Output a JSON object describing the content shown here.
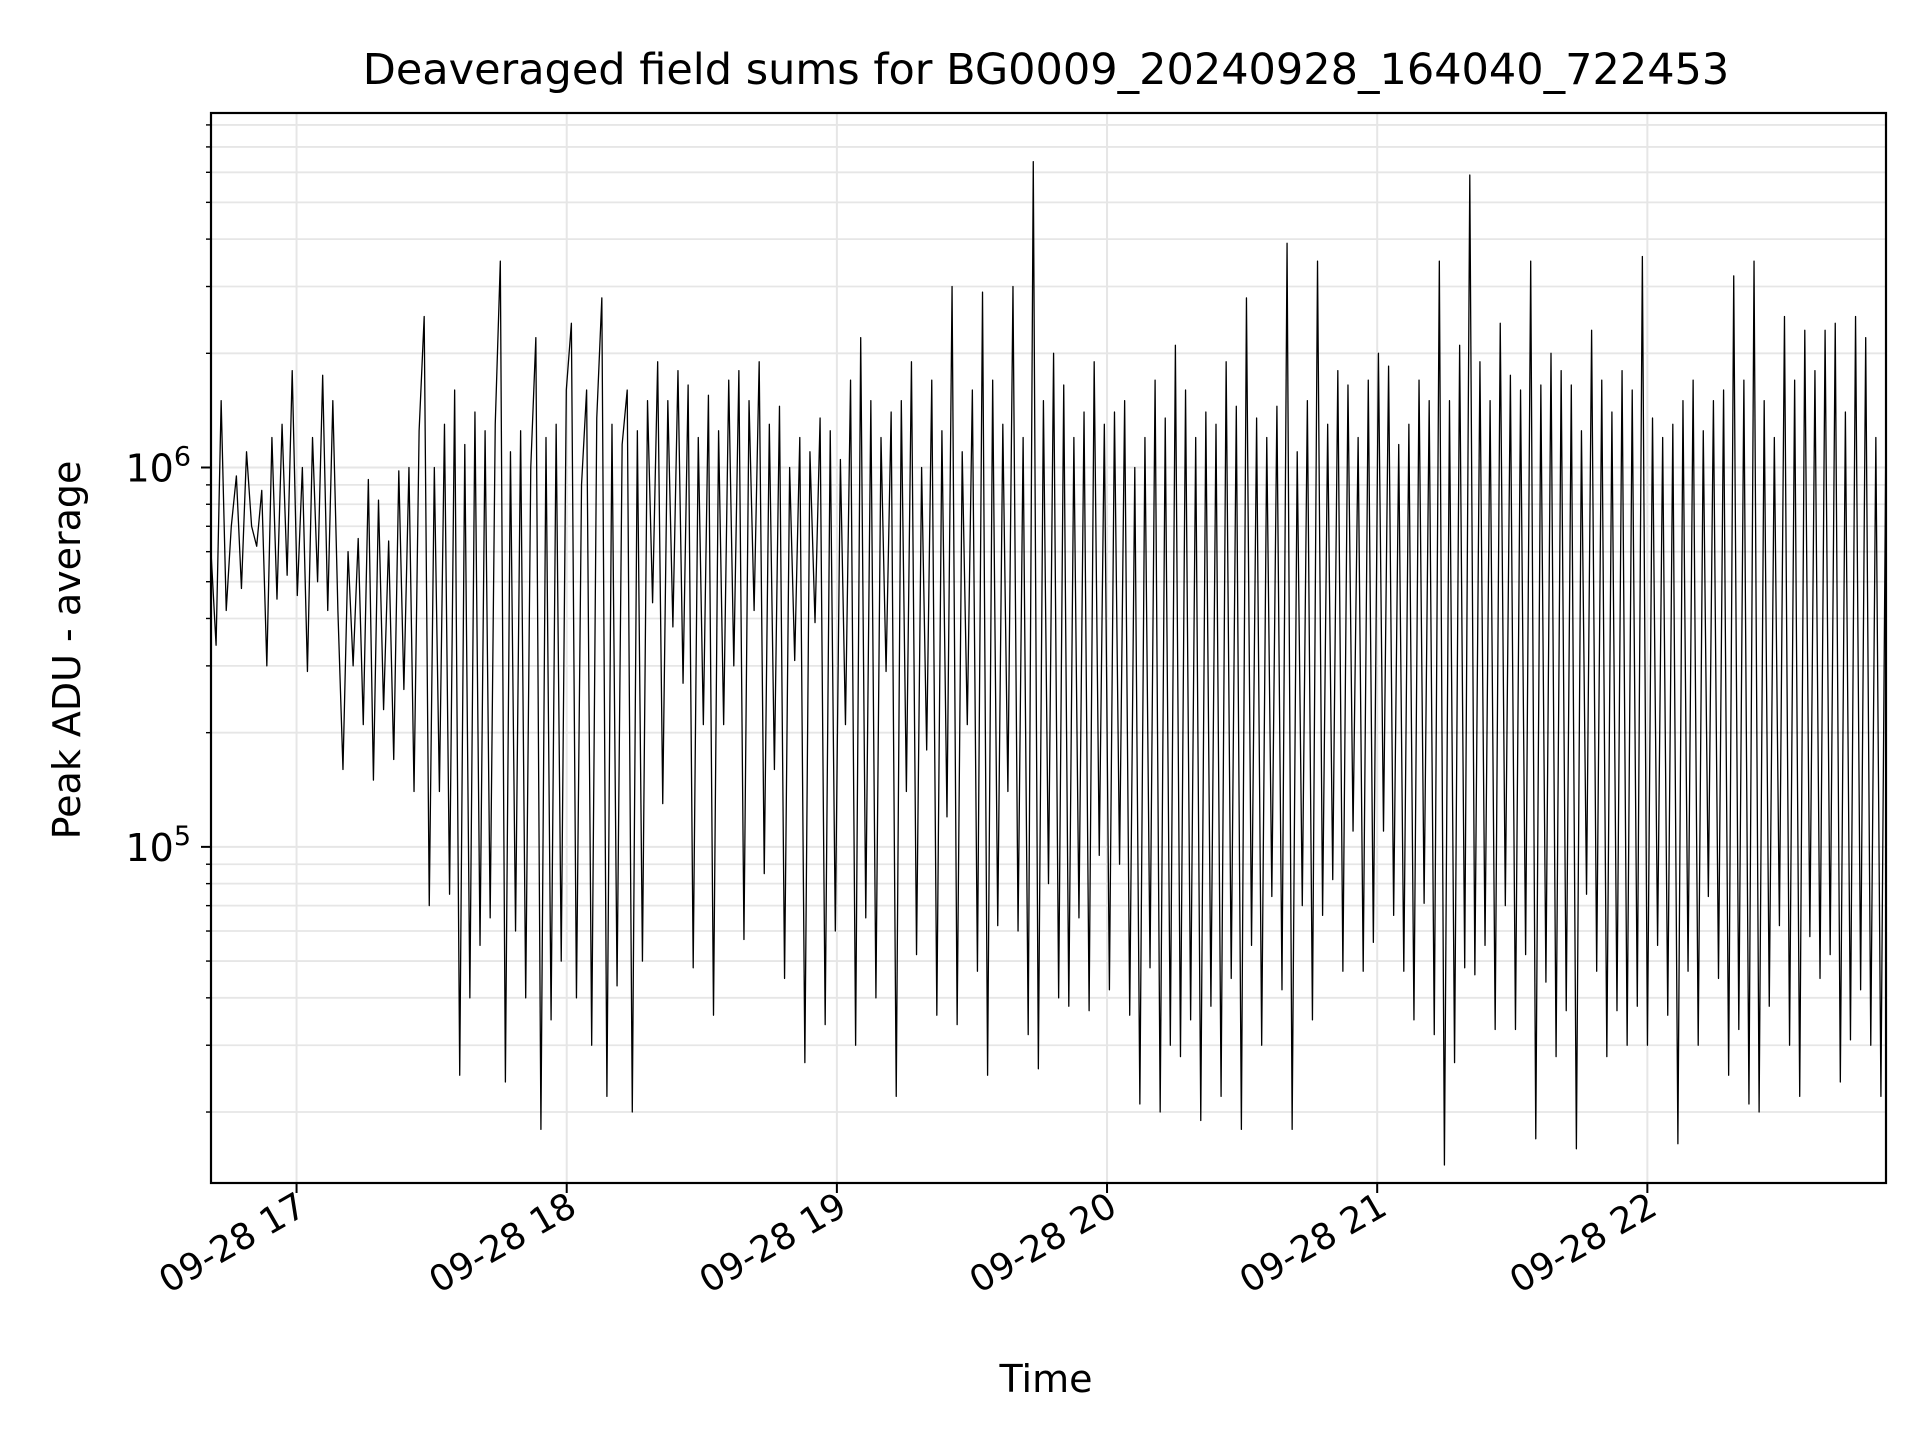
{
  "chart_data": {
    "type": "line",
    "title": "Deaveraged field sums for BG0009_20240928_164040_722453",
    "xlabel": "Time",
    "ylabel": "Peak ADU - average",
    "xlim": [
      "2024-09-28 16:41",
      "2024-09-28 22:53"
    ],
    "ylim": [
      13000,
      8600000
    ],
    "yscale": "log",
    "grid": true,
    "x_tick_labels": [
      {
        "t": "2024-09-28 17:00",
        "label": "09-28 17"
      },
      {
        "t": "2024-09-28 18:00",
        "label": "09-28 18"
      },
      {
        "t": "2024-09-28 19:00",
        "label": "09-28 19"
      },
      {
        "t": "2024-09-28 20:00",
        "label": "09-28 20"
      },
      {
        "t": "2024-09-28 21:00",
        "label": "09-28 21"
      },
      {
        "t": "2024-09-28 22:00",
        "label": "09-28 22"
      }
    ],
    "y_tick_labels": [
      {
        "value": 100000,
        "base": "10",
        "exp": "5"
      },
      {
        "value": 1000000,
        "base": "10",
        "exp": "6"
      }
    ],
    "line_color": "#000000",
    "series": [
      {
        "time_start": "2024-09-28 16:41",
        "time_end": "2024-09-28 22:53",
        "values": [
          600000,
          340000,
          1500000,
          420000,
          700000,
          950000,
          480000,
          1100000,
          700000,
          620000,
          870000,
          300000,
          1200000,
          450000,
          1300000,
          520000,
          1800000,
          460000,
          1000000,
          290000,
          1200000,
          500000,
          1750000,
          420000,
          1500000,
          420000,
          160000,
          600000,
          300000,
          650000,
          210000,
          930000,
          150000,
          820000,
          230000,
          640000,
          170000,
          980000,
          260000,
          1000000,
          140000,
          1250000,
          2500000,
          70000,
          1000000,
          140000,
          1300000,
          75000,
          1600000,
          25000,
          1150000,
          40000,
          1400000,
          55000,
          1250000,
          65000,
          1300000,
          3500000,
          24000,
          1100000,
          60000,
          1250000,
          40000,
          1000000,
          2200000,
          18000,
          1200000,
          35000,
          1300000,
          50000,
          1600000,
          2400000,
          40000,
          900000,
          1600000,
          30000,
          1350000,
          2800000,
          22000,
          1300000,
          43000,
          1150000,
          1600000,
          20000,
          1250000,
          50000,
          1500000,
          440000,
          1900000,
          130000,
          1500000,
          380000,
          1800000,
          270000,
          1650000,
          48000,
          1200000,
          210000,
          1550000,
          36000,
          1250000,
          210000,
          1700000,
          300000,
          1800000,
          57000,
          1500000,
          420000,
          1900000,
          85000,
          1300000,
          160000,
          1450000,
          45000,
          1000000,
          310000,
          1200000,
          27000,
          1100000,
          390000,
          1350000,
          34000,
          1250000,
          60000,
          1050000,
          210000,
          1700000,
          30000,
          2200000,
          65000,
          1500000,
          40000,
          1200000,
          290000,
          1400000,
          22000,
          1500000,
          140000,
          1900000,
          52000,
          1000000,
          180000,
          1700000,
          36000,
          1250000,
          120000,
          3000000,
          34000,
          1100000,
          210000,
          1600000,
          47000,
          2900000,
          25000,
          1700000,
          62000,
          1300000,
          140000,
          3000000,
          60000,
          1200000,
          32000,
          6400000,
          26000,
          1500000,
          80000,
          2000000,
          40000,
          1650000,
          38000,
          1200000,
          65000,
          1400000,
          37000,
          1900000,
          95000,
          1300000,
          42000,
          1400000,
          90000,
          1500000,
          36000,
          1000000,
          21000,
          1200000,
          48000,
          1700000,
          20000,
          1350000,
          30000,
          2100000,
          28000,
          1600000,
          35000,
          1200000,
          19000,
          1400000,
          38000,
          1300000,
          22000,
          1900000,
          45000,
          1450000,
          18000,
          2800000,
          55000,
          1350000,
          30000,
          1200000,
          74000,
          1450000,
          42000,
          3900000,
          18000,
          1100000,
          70000,
          1500000,
          35000,
          3500000,
          66000,
          1300000,
          82000,
          1800000,
          47000,
          1650000,
          110000,
          1200000,
          47000,
          1700000,
          56000,
          2000000,
          110000,
          1850000,
          66000,
          1150000,
          47000,
          1300000,
          35000,
          1700000,
          71000,
          1500000,
          32000,
          3500000,
          14500,
          1500000,
          27000,
          2100000,
          48000,
          5900000,
          46000,
          1900000,
          55000,
          1500000,
          33000,
          2400000,
          70000,
          1750000,
          33000,
          1600000,
          52000,
          3500000,
          17000,
          1650000,
          44000,
          2000000,
          28000,
          1800000,
          37000,
          1650000,
          16000,
          1250000,
          75000,
          2300000,
          47000,
          1700000,
          28000,
          1400000,
          37000,
          1800000,
          30000,
          1600000,
          38000,
          3600000,
          30000,
          1350000,
          55000,
          1200000,
          36000,
          1300000,
          16500,
          1500000,
          47000,
          1700000,
          30000,
          1250000,
          74000,
          1500000,
          45000,
          1600000,
          25000,
          3200000,
          33000,
          1700000,
          21000,
          3500000,
          20000,
          1500000,
          38000,
          1200000,
          62000,
          2500000,
          30000,
          1700000,
          22000,
          2300000,
          58000,
          1800000,
          45000,
          2300000,
          52000,
          2400000,
          24000,
          1400000,
          31000,
          2500000,
          42000,
          2200000,
          30000,
          1200000,
          22000,
          1350000
        ]
      }
    ]
  }
}
